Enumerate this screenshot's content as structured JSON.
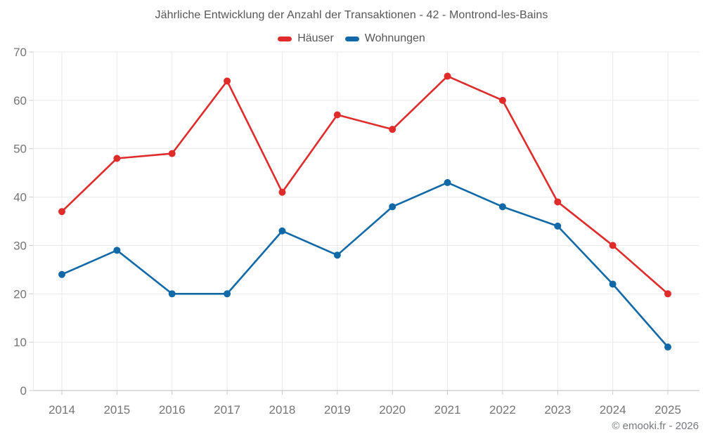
{
  "title": "Jährliche Entwicklung der Anzahl der Transaktionen - 42 - Montrond-les-Bains",
  "legend": {
    "items": [
      {
        "label": "Häuser",
        "color": "#e02b2b"
      },
      {
        "label": "Wohnungen",
        "color": "#1269a8"
      }
    ]
  },
  "footer": {
    "credit": "© emooki.fr - 2026"
  },
  "colors": {
    "grid": "#e9e9e9",
    "axis": "#c9c9c9",
    "tick_label": "#757575",
    "title_text": "#565656"
  },
  "chart_data": {
    "type": "line",
    "title": "Jährliche Entwicklung der Anzahl der Transaktionen - 42 - Montrond-les-Bains",
    "categories": [
      "2014",
      "2015",
      "2016",
      "2017",
      "2018",
      "2019",
      "2020",
      "2021",
      "2022",
      "2023",
      "2024",
      "2025"
    ],
    "series": [
      {
        "name": "Häuser",
        "color": "#e02b2b",
        "values": [
          37,
          48,
          49,
          64,
          41,
          57,
          54,
          65,
          60,
          39,
          30,
          20
        ]
      },
      {
        "name": "Wohnungen",
        "color": "#1269a8",
        "values": [
          24,
          29,
          20,
          20,
          33,
          28,
          38,
          43,
          38,
          34,
          22,
          9
        ]
      }
    ],
    "xlabel": "",
    "ylabel": "",
    "ylim": [
      0,
      70
    ],
    "yticks": [
      0,
      10,
      20,
      30,
      40,
      50,
      60,
      70
    ],
    "grid": true,
    "legend_position": "top"
  }
}
